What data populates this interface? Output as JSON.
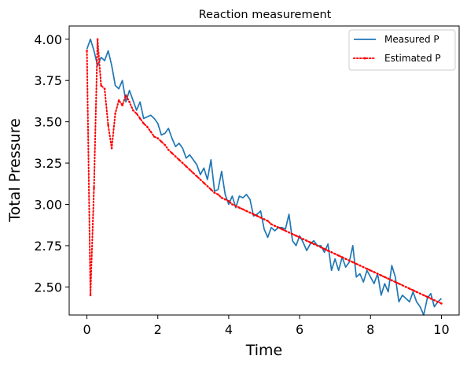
{
  "chart_data": {
    "type": "line",
    "title": "Reaction measurement",
    "xlabel": "Time",
    "ylabel": "Total Pressure",
    "xlim": [
      -0.5,
      10.5
    ],
    "ylim": [
      2.33,
      4.08
    ],
    "xticks": [
      0,
      2,
      4,
      6,
      8,
      10
    ],
    "xtick_labels": [
      "0",
      "2",
      "4",
      "6",
      "8",
      "10"
    ],
    "yticks": [
      2.5,
      2.75,
      3.0,
      3.25,
      3.5,
      3.75,
      4.0
    ],
    "ytick_labels": [
      "2.50",
      "2.75",
      "3.00",
      "3.25",
      "3.50",
      "3.75",
      "4.00"
    ],
    "grid": false,
    "legend_position": "upper right",
    "series": [
      {
        "name": "Measured P",
        "color": "#1f77b4",
        "style": "solid",
        "x": [
          0.0,
          0.1,
          0.2,
          0.3,
          0.4,
          0.5,
          0.6,
          0.7,
          0.8,
          0.9,
          1.0,
          1.1,
          1.2,
          1.3,
          1.4,
          1.5,
          1.6,
          1.7,
          1.8,
          1.9,
          2.0,
          2.1,
          2.2,
          2.3,
          2.4,
          2.5,
          2.6,
          2.7,
          2.8,
          2.9,
          3.0,
          3.1,
          3.2,
          3.3,
          3.4,
          3.5,
          3.6,
          3.7,
          3.8,
          3.9,
          4.0,
          4.1,
          4.2,
          4.3,
          4.4,
          4.5,
          4.6,
          4.7,
          4.8,
          4.9,
          5.0,
          5.1,
          5.2,
          5.3,
          5.4,
          5.5,
          5.6,
          5.7,
          5.8,
          5.9,
          6.0,
          6.1,
          6.2,
          6.3,
          6.4,
          6.5,
          6.6,
          6.7,
          6.8,
          6.9,
          7.0,
          7.1,
          7.2,
          7.3,
          7.4,
          7.5,
          7.6,
          7.7,
          7.8,
          7.9,
          8.0,
          8.1,
          8.2,
          8.3,
          8.4,
          8.5,
          8.6,
          8.7,
          8.8,
          8.9,
          9.0,
          9.1,
          9.2,
          9.3,
          9.4,
          9.5,
          9.6,
          9.7,
          9.8,
          9.9,
          10.0
        ],
        "y": [
          3.94,
          4.0,
          3.93,
          3.84,
          3.89,
          3.87,
          3.93,
          3.84,
          3.72,
          3.7,
          3.75,
          3.62,
          3.69,
          3.63,
          3.57,
          3.62,
          3.52,
          3.53,
          3.54,
          3.52,
          3.49,
          3.42,
          3.43,
          3.46,
          3.4,
          3.35,
          3.37,
          3.34,
          3.28,
          3.3,
          3.27,
          3.24,
          3.18,
          3.22,
          3.15,
          3.27,
          3.08,
          3.09,
          3.2,
          3.06,
          3.0,
          3.05,
          2.98,
          3.05,
          3.04,
          3.06,
          3.03,
          2.93,
          2.94,
          2.96,
          2.85,
          2.8,
          2.86,
          2.84,
          2.86,
          2.86,
          2.85,
          2.94,
          2.78,
          2.75,
          2.81,
          2.77,
          2.72,
          2.76,
          2.78,
          2.75,
          2.75,
          2.71,
          2.76,
          2.6,
          2.67,
          2.6,
          2.68,
          2.62,
          2.65,
          2.75,
          2.56,
          2.58,
          2.53,
          2.6,
          2.56,
          2.52,
          2.58,
          2.45,
          2.52,
          2.47,
          2.63,
          2.56,
          2.41,
          2.45,
          2.43,
          2.41,
          2.47,
          2.41,
          2.38,
          2.33,
          2.43,
          2.46,
          2.38,
          2.41,
          2.43
        ]
      },
      {
        "name": "Estimated P",
        "color": "#ff0000",
        "style": "dotted",
        "x": [
          0.0,
          0.1,
          0.2,
          0.3,
          0.4,
          0.5,
          0.6,
          0.7,
          0.8,
          0.9,
          1.0,
          1.1,
          1.2,
          1.3,
          1.4,
          1.5,
          1.6,
          1.7,
          1.8,
          1.9,
          2.0,
          2.1,
          2.2,
          2.3,
          2.4,
          2.5,
          2.6,
          2.7,
          2.8,
          2.9,
          3.0,
          3.1,
          3.2,
          3.3,
          3.4,
          3.5,
          3.6,
          3.7,
          3.8,
          3.9,
          4.0,
          4.1,
          4.2,
          4.3,
          4.4,
          4.5,
          4.6,
          4.7,
          4.8,
          4.9,
          5.0,
          5.1,
          5.2,
          5.3,
          5.4,
          5.5,
          5.6,
          5.7,
          5.8,
          5.9,
          6.0,
          6.1,
          6.2,
          6.3,
          6.4,
          6.5,
          6.6,
          6.7,
          6.8,
          6.9,
          7.0,
          7.1,
          7.2,
          7.3,
          7.4,
          7.5,
          7.6,
          7.7,
          7.8,
          7.9,
          8.0,
          8.1,
          8.2,
          8.3,
          8.4,
          8.5,
          8.6,
          8.7,
          8.8,
          8.9,
          9.0,
          9.1,
          9.2,
          9.3,
          9.4,
          9.5,
          9.6,
          9.7,
          9.8,
          9.9,
          10.0
        ],
        "y": [
          3.93,
          2.45,
          3.1,
          4.0,
          3.72,
          3.7,
          3.48,
          3.34,
          3.55,
          3.63,
          3.6,
          3.66,
          3.62,
          3.57,
          3.55,
          3.52,
          3.49,
          3.47,
          3.44,
          3.41,
          3.4,
          3.38,
          3.36,
          3.33,
          3.31,
          3.29,
          3.27,
          3.25,
          3.23,
          3.21,
          3.19,
          3.17,
          3.15,
          3.13,
          3.11,
          3.09,
          3.07,
          3.06,
          3.04,
          3.03,
          3.02,
          3.0,
          2.99,
          2.98,
          2.97,
          2.96,
          2.95,
          2.94,
          2.93,
          2.92,
          2.91,
          2.9,
          2.88,
          2.87,
          2.86,
          2.85,
          2.84,
          2.83,
          2.82,
          2.81,
          2.8,
          2.79,
          2.78,
          2.77,
          2.76,
          2.75,
          2.74,
          2.73,
          2.72,
          2.71,
          2.7,
          2.69,
          2.68,
          2.67,
          2.66,
          2.65,
          2.64,
          2.63,
          2.62,
          2.61,
          2.6,
          2.59,
          2.58,
          2.57,
          2.56,
          2.55,
          2.54,
          2.53,
          2.52,
          2.51,
          2.5,
          2.49,
          2.48,
          2.47,
          2.46,
          2.45,
          2.44,
          2.43,
          2.42,
          2.41,
          2.4
        ]
      }
    ]
  }
}
